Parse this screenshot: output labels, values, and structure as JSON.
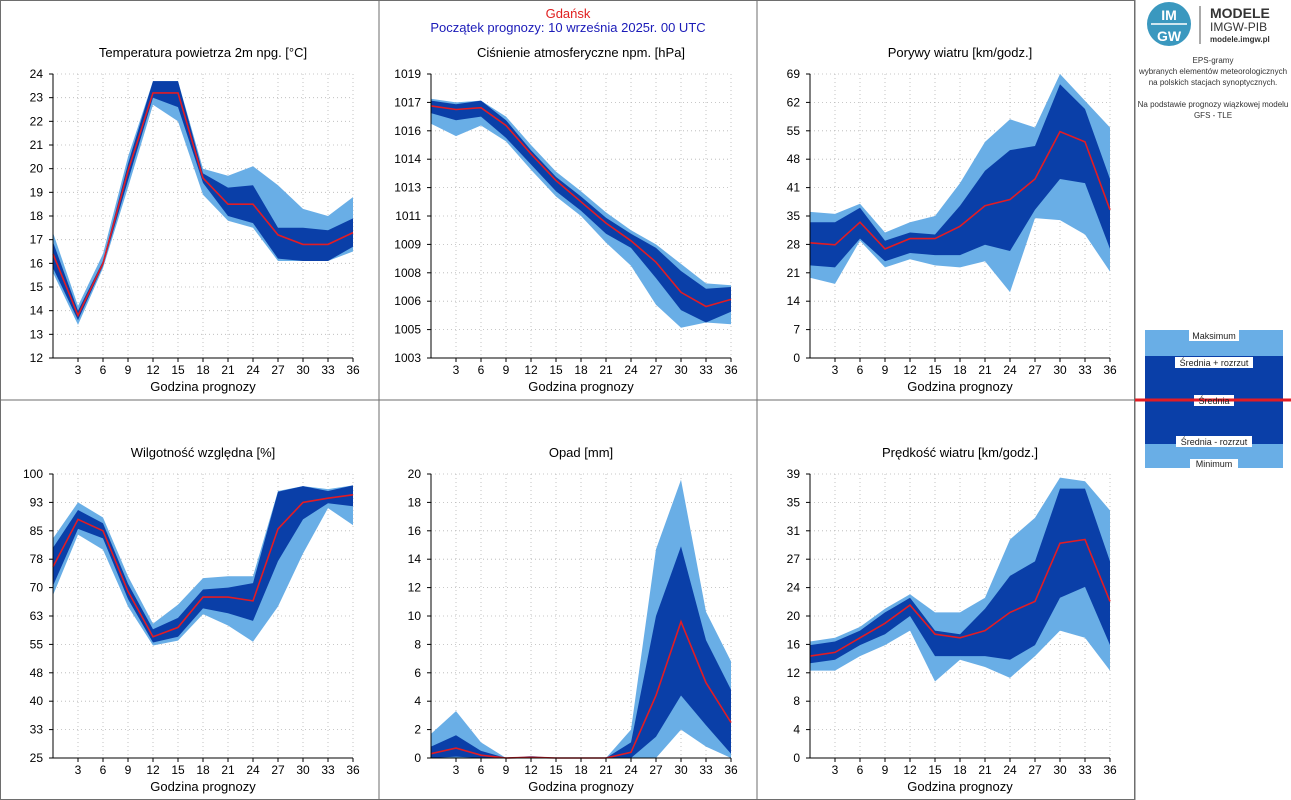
{
  "header": {
    "city": "Gdańsk",
    "forecast_start": "Początek prognozy: 10 września 2025r. 00 UTC"
  },
  "logo": {
    "title": "MODELE",
    "subtitle": "IMGW-PIB",
    "url": "modele.imgw.pl",
    "badge_top": "IM",
    "badge_bottom": "GW"
  },
  "description": {
    "line1": "EPS-gramy",
    "line2": "wybranych elementów meteorologicznych",
    "line3": "na polskich stacjach  synoptycznych.",
    "line4": "Na podstawie prognozy wiązkowej modelu",
    "line5": "GFS - TLE"
  },
  "legend": {
    "max": "Maksimum",
    "mean_plus": "Średnia + rozrzut",
    "mean": "Średnia",
    "mean_minus": "Średnia - rozrzut",
    "min": "Minimum"
  },
  "colors": {
    "outer_band": "#69aee6",
    "inner_band": "#0a3fa8",
    "mean_line": "#e21c24",
    "header_city": "#e02020",
    "header_start": "#1a1ab8"
  },
  "chart_data": [
    {
      "type": "area",
      "title": "Temperatura powietrza 2m npg. [°C]",
      "xlabel": "Godzina prognozy",
      "ylabel": "",
      "x": [
        0,
        3,
        6,
        9,
        12,
        15,
        18,
        21,
        24,
        27,
        30,
        33,
        36
      ],
      "xticks": [
        3,
        6,
        9,
        12,
        15,
        18,
        21,
        24,
        27,
        30,
        33,
        36
      ],
      "yticks": [
        "12",
        "13",
        "14",
        "15",
        "16",
        "17",
        "18",
        "19",
        "20",
        "21",
        "22",
        "23",
        "24"
      ],
      "ylim": [
        12,
        24
      ],
      "min": [
        15.6,
        13.4,
        15.8,
        19.2,
        22.7,
        22.0,
        18.9,
        17.8,
        17.5,
        16.1,
        16.1,
        16.1,
        16.5
      ],
      "mean_minus": [
        15.8,
        13.6,
        15.9,
        19.5,
        23.0,
        22.6,
        19.4,
        18.0,
        17.7,
        16.2,
        16.1,
        16.1,
        16.7
      ],
      "mean": [
        16.4,
        13.8,
        16.0,
        19.9,
        23.2,
        23.2,
        19.6,
        18.5,
        18.5,
        17.2,
        16.8,
        16.8,
        17.3
      ],
      "mean_plus": [
        16.9,
        14.0,
        16.1,
        20.2,
        23.7,
        23.7,
        19.8,
        19.2,
        19.3,
        17.5,
        17.5,
        17.4,
        17.9
      ],
      "max": [
        17.3,
        14.2,
        16.4,
        20.5,
        23.7,
        23.7,
        20.0,
        19.7,
        20.1,
        19.3,
        18.3,
        18.0,
        18.8
      ]
    },
    {
      "type": "area",
      "title": "Ciśnienie atmosferyczne npm. [hPa]",
      "xlabel": "Godzina prognozy",
      "ylabel": "",
      "x": [
        0,
        3,
        6,
        9,
        12,
        15,
        18,
        21,
        24,
        27,
        30,
        33,
        36
      ],
      "xticks": [
        3,
        6,
        9,
        12,
        15,
        18,
        21,
        24,
        27,
        30,
        33,
        36
      ],
      "yticks": [
        "1003",
        "1005",
        "1006",
        "1008",
        "1009",
        "1011",
        "1013",
        "1014",
        "1016",
        "1017",
        "1019"
      ],
      "ylim": [
        1003,
        1019
      ],
      "min": [
        1016.2,
        1015.5,
        1016.1,
        1015.2,
        1013.6,
        1012.1,
        1011.0,
        1009.5,
        1008.2,
        1006.0,
        1004.7,
        1005.0,
        1004.9
      ],
      "mean_minus": [
        1016.8,
        1016.4,
        1016.6,
        1015.4,
        1013.9,
        1012.4,
        1011.3,
        1010.0,
        1009.2,
        1007.5,
        1005.7,
        1005.0,
        1005.6
      ],
      "mean": [
        1017.2,
        1017.0,
        1017.1,
        1016.1,
        1014.5,
        1013.0,
        1011.8,
        1010.6,
        1009.6,
        1008.4,
        1006.7,
        1005.9,
        1006.3
      ],
      "mean_plus": [
        1017.5,
        1017.3,
        1017.5,
        1016.4,
        1014.7,
        1013.2,
        1012.1,
        1010.9,
        1010.0,
        1009.2,
        1007.9,
        1006.9,
        1007.0
      ],
      "max": [
        1017.6,
        1017.4,
        1017.5,
        1016.6,
        1015.0,
        1013.5,
        1012.4,
        1011.2,
        1010.2,
        1009.4,
        1008.3,
        1007.2,
        1007.1
      ]
    },
    {
      "type": "area",
      "title": "Porywy wiatru [km/godz.]",
      "xlabel": "Godzina prognozy",
      "ylabel": "",
      "x": [
        0,
        3,
        6,
        9,
        12,
        15,
        18,
        21,
        24,
        27,
        30,
        33,
        36
      ],
      "xticks": [
        3,
        6,
        9,
        12,
        15,
        18,
        21,
        24,
        27,
        30,
        33,
        36
      ],
      "yticks": [
        "0",
        "7",
        "14",
        "21",
        "28",
        "35",
        "41",
        "48",
        "55",
        "62",
        "69"
      ],
      "ylim": [
        0,
        69
      ],
      "min": [
        19.5,
        18.0,
        28.5,
        22.0,
        24.0,
        22.5,
        22.0,
        23.5,
        16.0,
        34.0,
        33.5,
        30.0,
        21.0
      ],
      "mean_minus": [
        22.5,
        22.0,
        29.0,
        23.5,
        25.5,
        25.0,
        25.0,
        27.5,
        26.0,
        36.0,
        43.5,
        42.5,
        26.5
      ],
      "mean": [
        28.0,
        27.5,
        33.0,
        26.5,
        29.0,
        29.0,
        32.0,
        37.0,
        38.5,
        43.5,
        55.0,
        52.5,
        36.0
      ],
      "mean_plus": [
        33.0,
        33.0,
        36.5,
        28.5,
        30.5,
        30.0,
        37.0,
        45.5,
        50.5,
        51.5,
        66.5,
        60.5,
        43.5
      ],
      "max": [
        35.5,
        35.0,
        37.5,
        30.5,
        33.0,
        34.5,
        42.5,
        52.5,
        58.0,
        56.0,
        69.0,
        62.5,
        56.0
      ]
    },
    {
      "type": "area",
      "title": "Wilgotność względna [%]",
      "xlabel": "Godzina prognozy",
      "ylabel": "",
      "x": [
        0,
        3,
        6,
        9,
        12,
        15,
        18,
        21,
        24,
        27,
        30,
        33,
        36
      ],
      "xticks": [
        3,
        6,
        9,
        12,
        15,
        18,
        21,
        24,
        27,
        30,
        33,
        36
      ],
      "yticks": [
        "25",
        "33",
        "40",
        "48",
        "55",
        "63",
        "70",
        "78",
        "85",
        "93",
        "100"
      ],
      "ylim": [
        25,
        100
      ],
      "min": [
        68,
        84,
        80,
        65,
        54.7,
        56,
        63,
        60,
        55.7,
        65,
        79,
        91,
        86.5
      ],
      "mean_minus": [
        70.5,
        85.5,
        83,
        67,
        55.5,
        57,
        64.5,
        63.2,
        61.2,
        77,
        88,
        92.3,
        91.5
      ],
      "mean": [
        75.5,
        88,
        85,
        69,
        57,
        59.5,
        67.5,
        67.5,
        66.5,
        85.5,
        92.5,
        93.6,
        94.5
      ],
      "mean_plus": [
        80.5,
        90.5,
        87,
        71,
        59,
        62,
        69.5,
        70,
        71.2,
        95.3,
        96.8,
        95.5,
        97
      ],
      "max": [
        83,
        92.5,
        88.5,
        73,
        60.5,
        65.5,
        72.5,
        73,
        73,
        95.5,
        96.8,
        96,
        97
      ]
    },
    {
      "type": "area",
      "title": "Opad [mm]",
      "xlabel": "Godzina prognozy",
      "ylabel": "",
      "x": [
        0,
        3,
        6,
        9,
        12,
        15,
        18,
        21,
        24,
        27,
        30,
        33,
        36
      ],
      "xticks": [
        3,
        6,
        9,
        12,
        15,
        18,
        21,
        24,
        27,
        30,
        33,
        36
      ],
      "yticks": [
        "0",
        "2",
        "4",
        "6",
        "8",
        "10",
        "12",
        "14",
        "16",
        "18",
        "20"
      ],
      "ylim": [
        0,
        20
      ],
      "min": [
        0,
        0,
        0,
        0,
        0,
        0,
        0,
        0,
        0,
        0,
        2.0,
        0.8,
        0
      ],
      "mean_minus": [
        0,
        0.1,
        0,
        0,
        0,
        0,
        0,
        0,
        0,
        1.5,
        4.4,
        2.3,
        0.3
      ],
      "mean": [
        0.3,
        0.7,
        0.2,
        0,
        0.05,
        0,
        0,
        0,
        0.4,
        4.4,
        9.6,
        5.3,
        2.5
      ],
      "mean_plus": [
        0.8,
        1.6,
        0.5,
        0,
        0.1,
        0,
        0,
        0,
        1.1,
        10.0,
        14.9,
        8.3,
        4.8
      ],
      "max": [
        1.7,
        3.3,
        1.1,
        0,
        0.15,
        0,
        0,
        0,
        2.0,
        14.7,
        19.6,
        10.3,
        6.8
      ]
    },
    {
      "type": "area",
      "title": "Prędkość wiatru [km/godz.]",
      "xlabel": "Godzina prognozy",
      "ylabel": "",
      "x": [
        0,
        3,
        6,
        9,
        12,
        15,
        18,
        21,
        24,
        27,
        30,
        33,
        36
      ],
      "xticks": [
        3,
        6,
        9,
        12,
        15,
        18,
        21,
        24,
        27,
        30,
        33,
        36
      ],
      "yticks": [
        "0",
        "4",
        "8",
        "12",
        "16",
        "20",
        "24",
        "27",
        "31",
        "35",
        "39"
      ],
      "ylim": [
        0,
        39
      ],
      "min": [
        12,
        12,
        14,
        15.5,
        17.5,
        10.5,
        13.5,
        12.5,
        11,
        14,
        17.5,
        16.5,
        12
      ],
      "mean_minus": [
        13,
        13.5,
        15.5,
        17,
        19.5,
        14,
        14,
        14,
        13.5,
        15.5,
        22,
        23.5,
        15.5
      ],
      "mean": [
        14,
        14.5,
        16.5,
        18.5,
        21,
        17,
        16.5,
        17.5,
        20,
        21.5,
        29.5,
        30,
        21.5
      ],
      "mean_plus": [
        15.5,
        16,
        17.5,
        20,
        22,
        17.5,
        17,
        20.5,
        25,
        27,
        37,
        37,
        27
      ],
      "max": [
        16,
        16.5,
        18,
        20.5,
        22.5,
        20,
        20,
        22,
        30,
        33,
        38.5,
        38,
        34
      ]
    }
  ]
}
